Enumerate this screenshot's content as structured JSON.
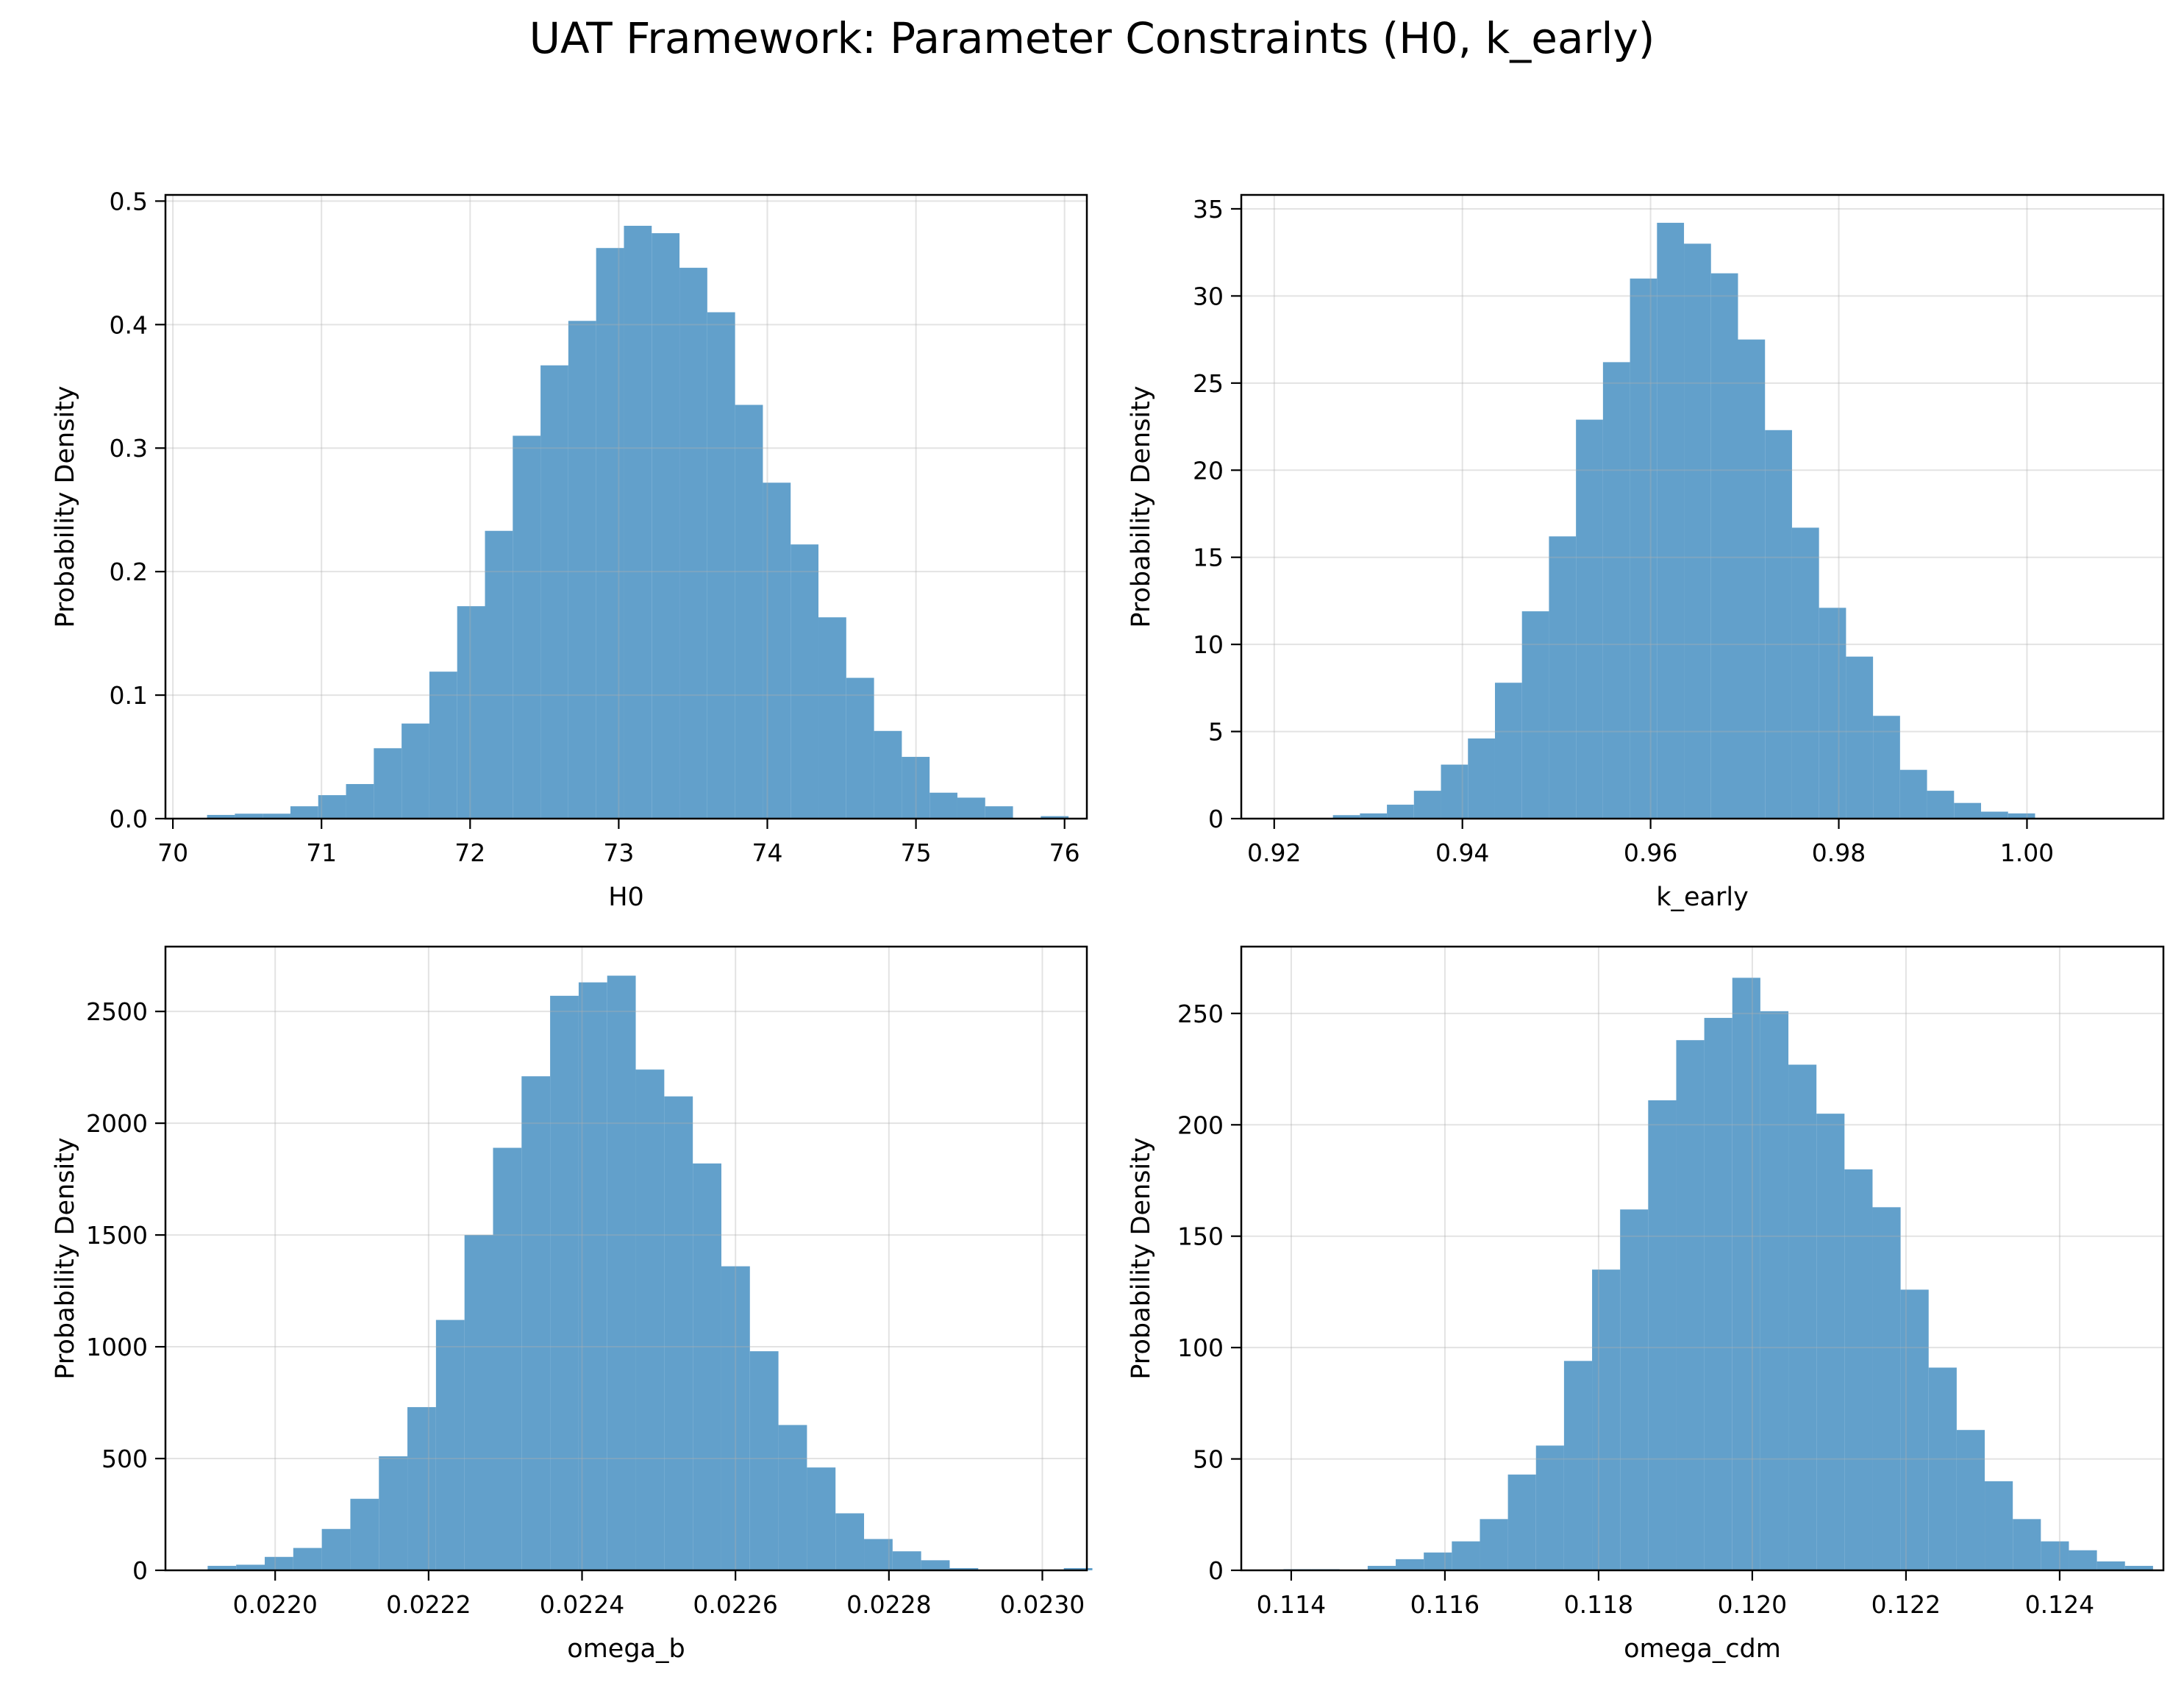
{
  "figure": {
    "title": "UAT Framework: Parameter Constraints (H0, k_early)"
  },
  "colors": {
    "bar": "#62a0cb",
    "grid": "#d9d9d9",
    "axis": "#000000"
  },
  "chart_data": [
    {
      "type": "bar",
      "title": "",
      "xlabel": "H0",
      "ylabel": "Probability Density",
      "xlim": [
        69.95,
        76.15
      ],
      "ylim": [
        0,
        0.505
      ],
      "xticks": [
        70,
        71,
        72,
        73,
        74,
        75,
        76
      ],
      "yticks": [
        0.0,
        0.1,
        0.2,
        0.3,
        0.4,
        0.5
      ],
      "ytick_labels": [
        "0.0",
        "0.1",
        "0.2",
        "0.3",
        "0.4",
        "0.5"
      ],
      "xtick_labels": [
        "70",
        "71",
        "72",
        "73",
        "74",
        "75",
        "76"
      ],
      "grid": true,
      "bin_start": 70.23,
      "bin_width": 0.187,
      "values": [
        0.003,
        0.004,
        0.004,
        0.01,
        0.019,
        0.028,
        0.057,
        0.077,
        0.119,
        0.172,
        0.233,
        0.31,
        0.367,
        0.403,
        0.462,
        0.48,
        0.474,
        0.446,
        0.41,
        0.335,
        0.272,
        0.222,
        0.163,
        0.114,
        0.071,
        0.05,
        0.021,
        0.017,
        0.01,
        0.0,
        0.002
      ]
    },
    {
      "type": "bar",
      "title": "",
      "xlabel": "k_early",
      "ylabel": "Probability Density",
      "xlim": [
        0.9165,
        1.0145
      ],
      "ylim": [
        0,
        35.8
      ],
      "xticks": [
        0.92,
        0.94,
        0.96,
        0.98,
        1.0
      ],
      "yticks": [
        0,
        5,
        10,
        15,
        20,
        25,
        30,
        35
      ],
      "ytick_labels": [
        "0",
        "5",
        "10",
        "15",
        "20",
        "25",
        "30",
        "35"
      ],
      "xtick_labels": [
        "0.92",
        "0.94",
        "0.96",
        "0.98",
        "1.00"
      ],
      "grid": true,
      "bin_start": 0.9205,
      "bin_width": 0.00287,
      "values": [
        0.0,
        0.0,
        0.2,
        0.3,
        0.8,
        1.6,
        3.1,
        4.6,
        7.8,
        11.9,
        16.2,
        22.9,
        26.2,
        31.0,
        34.2,
        33.0,
        31.3,
        27.5,
        22.3,
        16.7,
        12.1,
        9.3,
        5.9,
        2.8,
        1.6,
        0.9,
        0.4,
        0.3
      ]
    },
    {
      "type": "bar",
      "title": "",
      "xlabel": "omega_b",
      "ylabel": "Probability Density",
      "xlim": [
        0.021857,
        0.023058
      ],
      "ylim": [
        0,
        2790
      ],
      "xticks": [
        0.022,
        0.0222,
        0.0224,
        0.0226,
        0.0228,
        0.023
      ],
      "yticks": [
        0,
        500,
        1000,
        1500,
        2000,
        2500
      ],
      "ytick_labels": [
        "0",
        "500",
        "1000",
        "1500",
        "2000",
        "2500"
      ],
      "xtick_labels": [
        "0.0220",
        "0.0222",
        "0.0224",
        "0.0226",
        "0.0228",
        "0.0230"
      ],
      "grid": true,
      "bin_start": 0.021912,
      "bin_width": 3.72e-05,
      "values": [
        20,
        25,
        60,
        100,
        185,
        320,
        510,
        730,
        1120,
        1500,
        1890,
        2210,
        2570,
        2630,
        2660,
        2240,
        2120,
        1820,
        1360,
        980,
        650,
        460,
        255,
        140,
        85,
        45,
        10,
        0,
        0,
        0,
        10
      ]
    },
    {
      "type": "bar",
      "title": "",
      "xlabel": "omega_cdm",
      "ylabel": "Probability Density",
      "xlim": [
        0.11335,
        0.12535
      ],
      "ylim": [
        0,
        280
      ],
      "xticks": [
        0.114,
        0.116,
        0.118,
        0.12,
        0.122,
        0.124
      ],
      "yticks": [
        0,
        50,
        100,
        150,
        200,
        250
      ],
      "ytick_labels": [
        "0",
        "50",
        "100",
        "150",
        "200",
        "250"
      ],
      "xtick_labels": [
        "0.114",
        "0.116",
        "0.118",
        "0.120",
        "0.122",
        "0.124"
      ],
      "grid": true,
      "bin_start": 0.1139,
      "bin_width": 0.000365,
      "values": [
        0.5,
        0.5,
        0.0,
        2,
        5,
        8,
        13,
        23,
        43,
        56,
        94,
        135,
        162,
        211,
        238,
        248,
        266,
        251,
        227,
        205,
        180,
        163,
        126,
        91,
        63,
        40,
        23,
        13,
        9,
        4,
        2
      ]
    }
  ]
}
